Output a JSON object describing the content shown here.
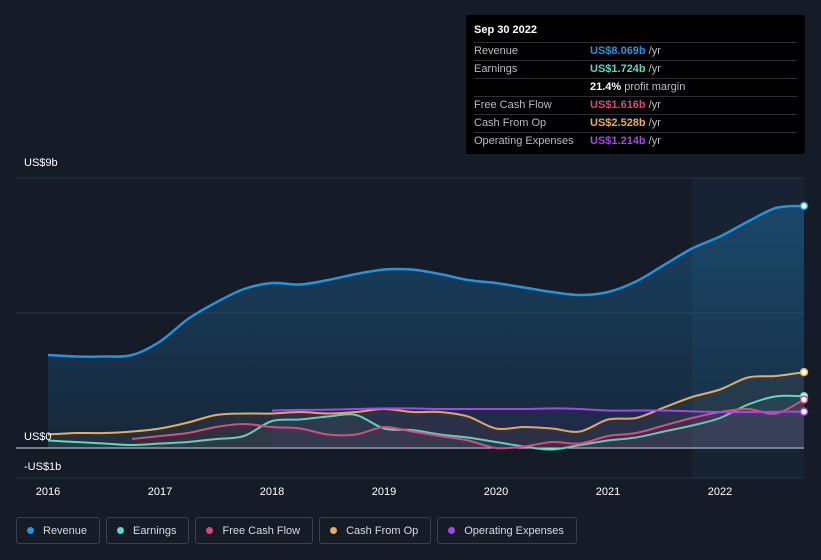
{
  "tooltip": {
    "date": "Sep 30 2022",
    "rows": [
      {
        "label": "Revenue",
        "value": "US$8.069b",
        "unit": "/yr",
        "color": "#2394e0"
      },
      {
        "label": "Earnings",
        "value": "US$1.724b",
        "unit": "/yr",
        "color": "#5ad8c5"
      },
      {
        "label": "",
        "value": "21.4%",
        "unit": "profit margin",
        "color": "#ffffff"
      },
      {
        "label": "Free Cash Flow",
        "value": "US$1.616b",
        "unit": "/yr",
        "color": "#d9487d"
      },
      {
        "label": "Cash From Op",
        "value": "US$2.528b",
        "unit": "/yr",
        "color": "#e8ac5c"
      },
      {
        "label": "Operating Expenses",
        "value": "US$1.214b",
        "unit": "/yr",
        "color": "#a646e8"
      }
    ]
  },
  "legend": [
    {
      "label": "Revenue",
      "color": "#2394e0"
    },
    {
      "label": "Earnings",
      "color": "#5ad8c5"
    },
    {
      "label": "Free Cash Flow",
      "color": "#d9487d"
    },
    {
      "label": "Cash From Op",
      "color": "#e8ac5c"
    },
    {
      "label": "Operating Expenses",
      "color": "#a646e8"
    }
  ],
  "chart_data": {
    "type": "area",
    "y_tick_labels": [
      "US$9b",
      "US$0",
      "-US$1b"
    ],
    "ylim": [
      -1,
      9
    ],
    "x_tick_labels": [
      "2016",
      "2017",
      "2018",
      "2019",
      "2020",
      "2021",
      "2022"
    ],
    "xlim": [
      2016.0,
      2022.75
    ],
    "highlight_start": 2021.75,
    "grid": true,
    "legend_position": "bottom",
    "series": [
      {
        "name": "Revenue",
        "color": "#2394e0",
        "fill": true,
        "x": [
          2016.0,
          2016.25,
          2016.5,
          2016.75,
          2017.0,
          2017.25,
          2017.5,
          2017.75,
          2018.0,
          2018.25,
          2018.5,
          2018.75,
          2019.0,
          2019.25,
          2019.5,
          2019.75,
          2020.0,
          2020.25,
          2020.5,
          2020.75,
          2021.0,
          2021.25,
          2021.5,
          2021.75,
          2022.0,
          2022.25,
          2022.5,
          2022.75
        ],
        "values": [
          3.1,
          3.05,
          3.05,
          3.1,
          3.55,
          4.3,
          4.85,
          5.3,
          5.5,
          5.45,
          5.6,
          5.8,
          5.95,
          5.95,
          5.8,
          5.6,
          5.5,
          5.35,
          5.2,
          5.1,
          5.2,
          5.55,
          6.1,
          6.65,
          7.05,
          7.55,
          8.0,
          8.069
        ]
      },
      {
        "name": "Earnings",
        "color": "#5ad8c5",
        "fill": false,
        "x": [
          2016.0,
          2016.25,
          2016.5,
          2016.75,
          2017.0,
          2017.25,
          2017.5,
          2017.75,
          2018.0,
          2018.25,
          2018.5,
          2018.75,
          2019.0,
          2019.25,
          2019.5,
          2019.75,
          2020.0,
          2020.25,
          2020.5,
          2020.75,
          2021.0,
          2021.25,
          2021.5,
          2021.75,
          2022.0,
          2022.25,
          2022.5,
          2022.75
        ],
        "values": [
          0.25,
          0.2,
          0.15,
          0.1,
          0.15,
          0.2,
          0.3,
          0.4,
          0.9,
          0.95,
          1.05,
          1.1,
          0.65,
          0.6,
          0.45,
          0.35,
          0.2,
          0.05,
          -0.05,
          0.1,
          0.25,
          0.35,
          0.55,
          0.75,
          1.0,
          1.45,
          1.72,
          1.724
        ]
      },
      {
        "name": "Free Cash Flow",
        "color": "#d9487d",
        "fill": false,
        "x": [
          2016.75,
          2017.0,
          2017.25,
          2017.5,
          2017.75,
          2018.0,
          2018.25,
          2018.5,
          2018.75,
          2019.0,
          2019.25,
          2019.5,
          2019.75,
          2020.0,
          2020.25,
          2020.5,
          2020.75,
          2021.0,
          2021.25,
          2021.5,
          2021.75,
          2022.0,
          2022.25,
          2022.5,
          2022.75
        ],
        "values": [
          0.3,
          0.4,
          0.5,
          0.7,
          0.8,
          0.7,
          0.65,
          0.45,
          0.45,
          0.7,
          0.55,
          0.4,
          0.25,
          0.0,
          0.05,
          0.2,
          0.15,
          0.4,
          0.5,
          0.75,
          1.0,
          1.2,
          1.3,
          1.15,
          1.616
        ]
      },
      {
        "name": "Cash From Op",
        "color": "#e8ac5c",
        "fill": false,
        "x": [
          2016.0,
          2016.25,
          2016.5,
          2016.75,
          2017.0,
          2017.25,
          2017.5,
          2017.75,
          2018.0,
          2018.25,
          2018.5,
          2018.75,
          2019.0,
          2019.25,
          2019.5,
          2019.75,
          2020.0,
          2020.25,
          2020.5,
          2020.75,
          2021.0,
          2021.25,
          2021.5,
          2021.75,
          2022.0,
          2022.25,
          2022.5,
          2022.75
        ],
        "values": [
          0.45,
          0.5,
          0.5,
          0.55,
          0.65,
          0.85,
          1.1,
          1.15,
          1.15,
          1.2,
          1.15,
          1.2,
          1.3,
          1.2,
          1.2,
          1.05,
          0.65,
          0.7,
          0.65,
          0.55,
          0.95,
          1.0,
          1.35,
          1.7,
          1.95,
          2.35,
          2.4,
          2.528
        ]
      },
      {
        "name": "Operating Expenses",
        "color": "#a646e8",
        "fill": false,
        "x": [
          2018.0,
          2018.25,
          2018.5,
          2018.75,
          2019.0,
          2019.25,
          2019.5,
          2019.75,
          2020.0,
          2020.25,
          2020.5,
          2020.75,
          2021.0,
          2021.25,
          2021.5,
          2021.75,
          2022.0,
          2022.25,
          2022.5,
          2022.75
        ],
        "values": [
          1.25,
          1.27,
          1.28,
          1.3,
          1.32,
          1.32,
          1.3,
          1.3,
          1.3,
          1.3,
          1.32,
          1.3,
          1.25,
          1.25,
          1.25,
          1.22,
          1.2,
          1.2,
          1.21,
          1.214
        ]
      }
    ]
  }
}
